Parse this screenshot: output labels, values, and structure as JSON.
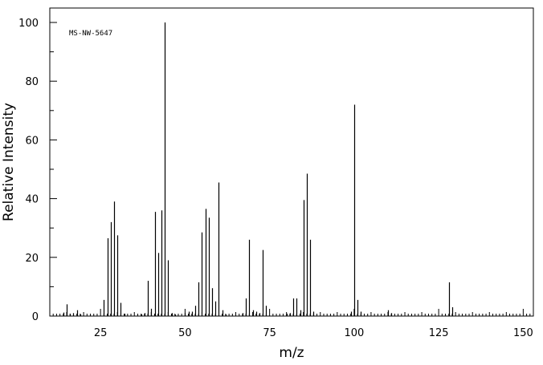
{
  "chart_data": {
    "type": "bar",
    "title": "",
    "annotation": "MS-NW-5647",
    "xlabel": "m/z",
    "ylabel": "Relative Intensity",
    "xlim": [
      10,
      153
    ],
    "ylim": [
      0,
      100
    ],
    "x_major_ticks": [
      25,
      50,
      75,
      100,
      125,
      150
    ],
    "y_major_ticks": [
      0,
      20,
      40,
      60,
      80,
      100
    ],
    "grid": false,
    "legend": "none",
    "peaks": [
      {
        "mz": 14,
        "intensity": 1.2
      },
      {
        "mz": 15,
        "intensity": 4.0
      },
      {
        "mz": 16,
        "intensity": 0.8
      },
      {
        "mz": 17,
        "intensity": 1.0
      },
      {
        "mz": 18,
        "intensity": 2.0
      },
      {
        "mz": 19,
        "intensity": 0.6
      },
      {
        "mz": 26,
        "intensity": 5.5
      },
      {
        "mz": 27,
        "intensity": 26.5
      },
      {
        "mz": 28,
        "intensity": 32.0
      },
      {
        "mz": 29,
        "intensity": 39.0
      },
      {
        "mz": 30,
        "intensity": 27.5
      },
      {
        "mz": 31,
        "intensity": 4.5
      },
      {
        "mz": 32,
        "intensity": 0.8
      },
      {
        "mz": 37,
        "intensity": 0.6
      },
      {
        "mz": 38,
        "intensity": 1.0
      },
      {
        "mz": 39,
        "intensity": 12.0
      },
      {
        "mz": 40,
        "intensity": 2.5
      },
      {
        "mz": 41,
        "intensity": 35.5
      },
      {
        "mz": 42,
        "intensity": 21.5
      },
      {
        "mz": 43,
        "intensity": 36.0
      },
      {
        "mz": 44,
        "intensity": 100.0
      },
      {
        "mz": 45,
        "intensity": 19.0
      },
      {
        "mz": 46,
        "intensity": 1.0
      },
      {
        "mz": 47,
        "intensity": 0.5
      },
      {
        "mz": 50,
        "intensity": 1.0
      },
      {
        "mz": 51,
        "intensity": 1.5
      },
      {
        "mz": 52,
        "intensity": 1.5
      },
      {
        "mz": 53,
        "intensity": 3.5
      },
      {
        "mz": 54,
        "intensity": 11.5
      },
      {
        "mz": 55,
        "intensity": 28.5
      },
      {
        "mz": 56,
        "intensity": 36.5
      },
      {
        "mz": 57,
        "intensity": 33.5
      },
      {
        "mz": 58,
        "intensity": 9.5
      },
      {
        "mz": 59,
        "intensity": 5.0
      },
      {
        "mz": 60,
        "intensity": 45.5
      },
      {
        "mz": 61,
        "intensity": 2.0
      },
      {
        "mz": 62,
        "intensity": 0.5
      },
      {
        "mz": 67,
        "intensity": 1.0
      },
      {
        "mz": 68,
        "intensity": 6.0
      },
      {
        "mz": 69,
        "intensity": 26.0
      },
      {
        "mz": 70,
        "intensity": 2.0
      },
      {
        "mz": 71,
        "intensity": 1.5
      },
      {
        "mz": 72,
        "intensity": 1.0
      },
      {
        "mz": 73,
        "intensity": 22.5
      },
      {
        "mz": 74,
        "intensity": 3.5
      },
      {
        "mz": 80,
        "intensity": 0.8
      },
      {
        "mz": 81,
        "intensity": 1.0
      },
      {
        "mz": 82,
        "intensity": 6.0
      },
      {
        "mz": 83,
        "intensity": 6.0
      },
      {
        "mz": 84,
        "intensity": 2.0
      },
      {
        "mz": 85,
        "intensity": 39.5
      },
      {
        "mz": 86,
        "intensity": 48.5
      },
      {
        "mz": 87,
        "intensity": 26.0
      },
      {
        "mz": 88,
        "intensity": 1.5
      },
      {
        "mz": 99,
        "intensity": 1.5
      },
      {
        "mz": 100,
        "intensity": 72.0
      },
      {
        "mz": 101,
        "intensity": 5.5
      },
      {
        "mz": 102,
        "intensity": 1.5
      },
      {
        "mz": 110,
        "intensity": 2.0
      },
      {
        "mz": 111,
        "intensity": 1.0
      },
      {
        "mz": 128,
        "intensity": 11.5
      },
      {
        "mz": 129,
        "intensity": 3.0
      }
    ]
  }
}
